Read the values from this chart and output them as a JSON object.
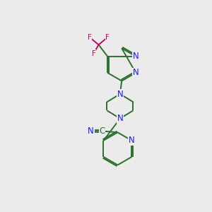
{
  "bg_color": "#ebebeb",
  "bond_color": "#2d6e2d",
  "N_color": "#1a1aff",
  "F_color": "#cc0066",
  "line_width": 1.4,
  "font_size": 8.5,
  "fig_size": [
    3.0,
    3.0
  ],
  "dpi": 100,
  "xlim": [
    0,
    10
  ],
  "ylim": [
    0,
    10
  ]
}
